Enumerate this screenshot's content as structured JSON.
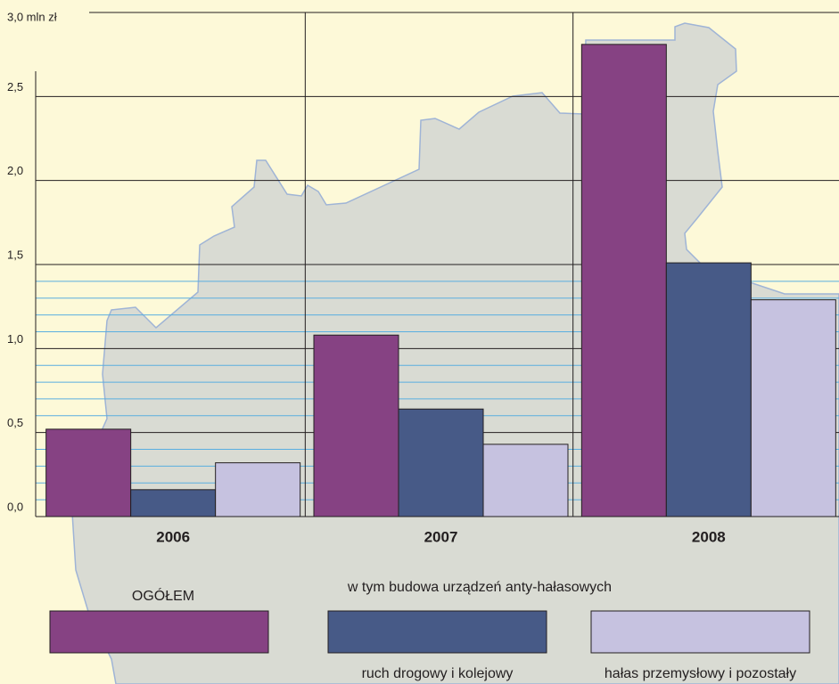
{
  "chart_data": {
    "type": "bar",
    "categories": [
      "2006",
      "2007",
      "2008"
    ],
    "series": [
      {
        "name": "OGÓŁEM",
        "color": "#864283",
        "values": [
          0.52,
          1.08,
          2.81
        ]
      },
      {
        "name": "ruch drogowy i kolejowy",
        "color": "#475a87",
        "values": [
          0.16,
          0.64,
          1.51
        ]
      },
      {
        "name": "hałas przemysłowy i pozostały",
        "color": "#c6c2e0",
        "values": [
          0.32,
          0.43,
          1.29
        ]
      }
    ],
    "legend_group_title": "w tym budowa urządzeń anty-hałasowych",
    "ylim": [
      0,
      3
    ],
    "yticks": [
      {
        "value": 0,
        "label": "0,0"
      },
      {
        "value": 0.5,
        "label": "0,5"
      },
      {
        "value": 1,
        "label": "1,0"
      },
      {
        "value": 1.5,
        "label": "1,5"
      },
      {
        "value": 2,
        "label": "2,0"
      },
      {
        "value": 2.5,
        "label": "2,5"
      },
      {
        "value": 3,
        "label": "3,0 mln zł"
      }
    ],
    "minor_yticks": [
      0.1,
      0.2,
      0.3,
      0.4,
      0.6,
      0.7,
      0.8,
      0.9,
      1.1,
      1.2,
      1.3,
      1.4
    ],
    "grid": true
  }
}
